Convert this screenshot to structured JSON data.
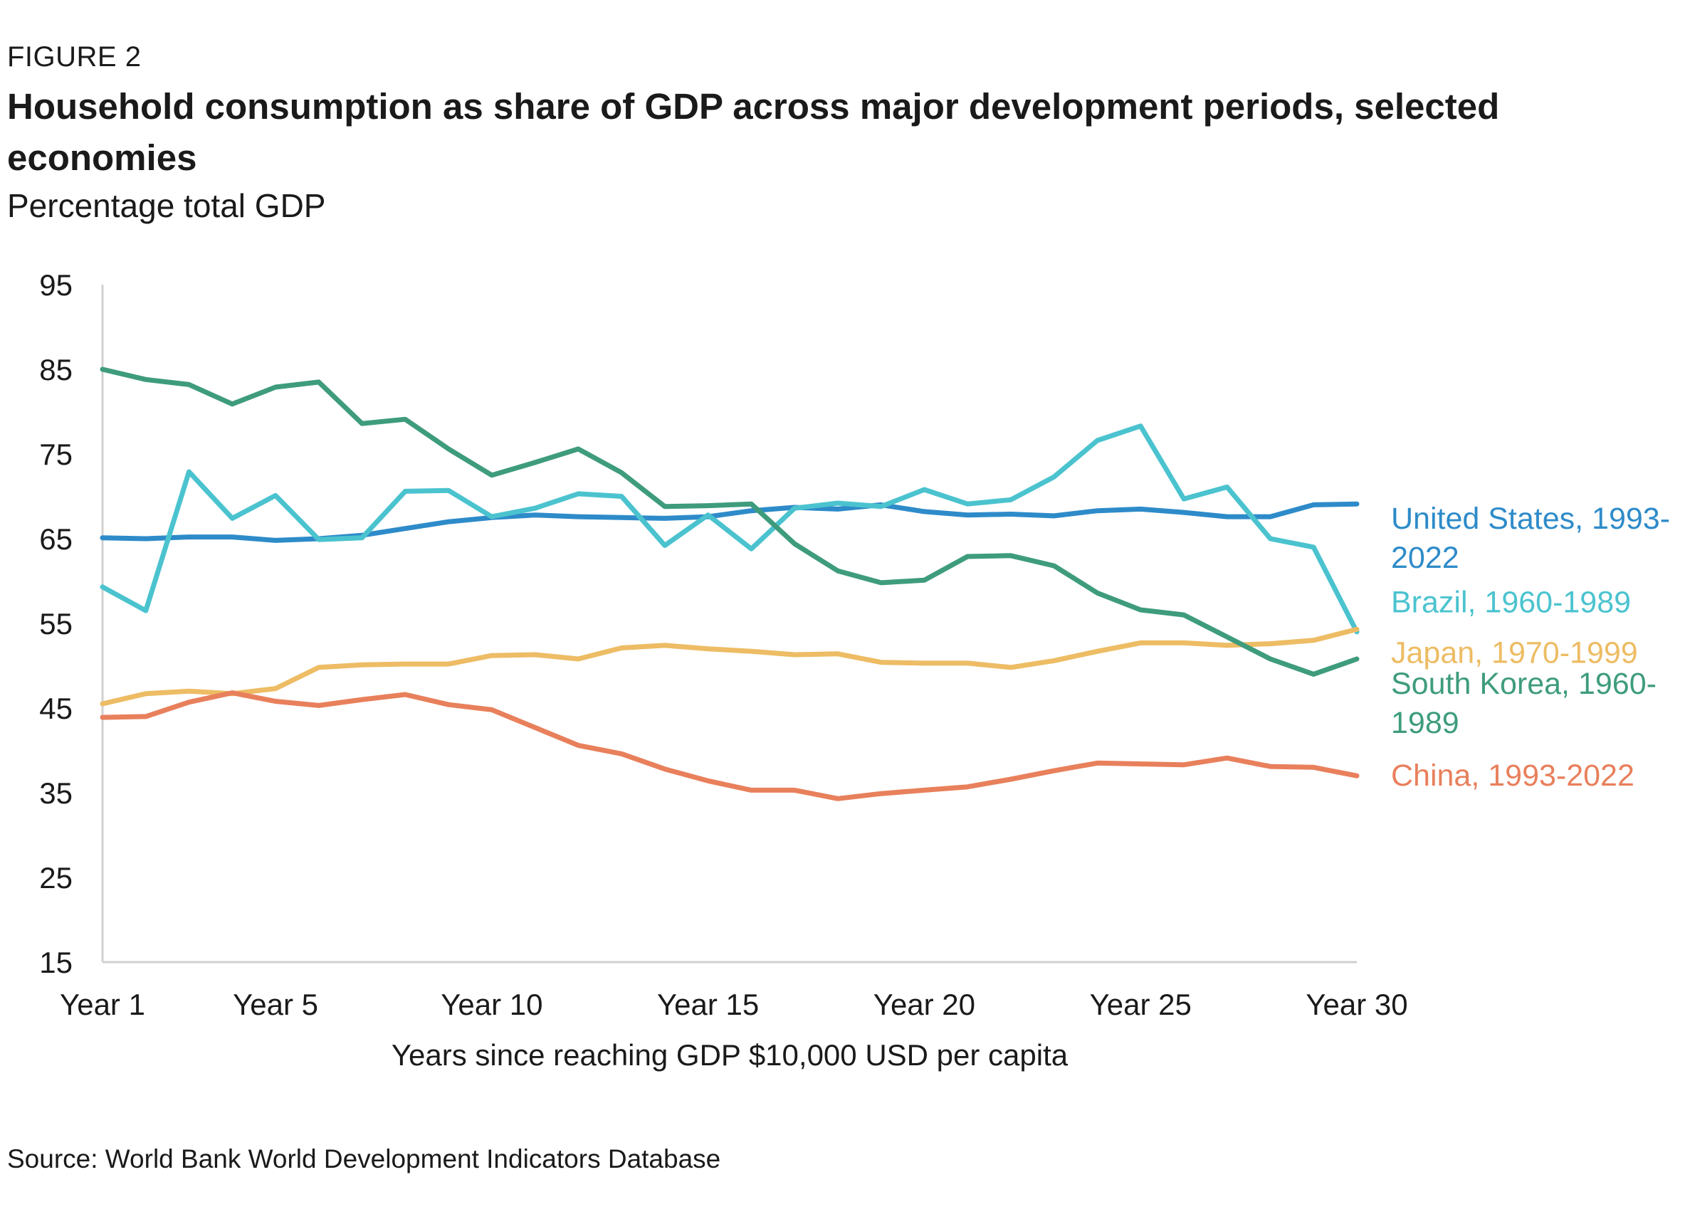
{
  "figure_label": "FIGURE 2",
  "source": "Source: World Bank World Development Indicators Database",
  "chart_data": {
    "type": "line",
    "title": "Household consumption as share of GDP across major development periods, selected economies",
    "subtitle": "Percentage total GDP",
    "xlabel": "Years since reaching GDP $10,000 USD per capita",
    "ylabel": "",
    "x": [
      1,
      2,
      3,
      4,
      5,
      6,
      7,
      8,
      9,
      10,
      11,
      12,
      13,
      14,
      15,
      16,
      17,
      18,
      19,
      20,
      21,
      22,
      23,
      24,
      25,
      26,
      27,
      28,
      29,
      30
    ],
    "x_tick_labels": [
      {
        "x": 1,
        "label": "Year 1"
      },
      {
        "x": 5,
        "label": "Year 5"
      },
      {
        "x": 10,
        "label": "Year 10"
      },
      {
        "x": 15,
        "label": "Year 15"
      },
      {
        "x": 20,
        "label": "Year 20"
      },
      {
        "x": 25,
        "label": "Year 25"
      },
      {
        "x": 30,
        "label": "Year 30"
      }
    ],
    "y_ticks": [
      15,
      25,
      35,
      45,
      55,
      65,
      75,
      85,
      95
    ],
    "ylim": [
      15,
      95
    ],
    "grid": false,
    "legend": "right, inline labels",
    "series": [
      {
        "name": "United States, 1993-2022",
        "label_lines": [
          "United States, 1993-",
          "2022"
        ],
        "color": "#2E8BC9",
        "values": [
          65.1,
          65.0,
          65.2,
          65.2,
          64.8,
          65.0,
          65.4,
          66.2,
          67.0,
          67.5,
          67.8,
          67.6,
          67.5,
          67.4,
          67.6,
          68.3,
          68.7,
          68.5,
          69.0,
          68.2,
          67.8,
          67.9,
          67.7,
          68.3,
          68.5,
          68.1,
          67.6,
          67.6,
          69.0,
          69.1
        ],
        "label_y": 65
      },
      {
        "name": "Brazil, 1960-1989",
        "label_lines": [
          "Brazil, 1960-1989"
        ],
        "color": "#4BC3CF",
        "values": [
          59.3,
          56.5,
          72.9,
          67.4,
          70.1,
          64.9,
          65.1,
          70.6,
          70.7,
          67.6,
          68.6,
          70.3,
          70.0,
          64.2,
          67.8,
          63.8,
          68.6,
          69.2,
          68.8,
          70.8,
          69.1,
          69.6,
          72.3,
          76.6,
          78.3,
          69.7,
          71.1,
          65.0,
          64.0,
          54.0
        ],
        "label_y": 57.5
      },
      {
        "name": "Japan, 1970-1999",
        "label_lines": [
          "Japan, 1970-1999"
        ],
        "color": "#EDBC64",
        "values": [
          45.5,
          46.7,
          47.0,
          46.7,
          47.3,
          49.8,
          50.1,
          50.2,
          50.2,
          51.2,
          51.3,
          50.8,
          52.1,
          52.4,
          52.0,
          51.7,
          51.3,
          51.4,
          50.4,
          50.3,
          50.3,
          49.8,
          50.6,
          51.7,
          52.7,
          52.7,
          52.4,
          52.6,
          53.0,
          54.3
        ],
        "label_y": 51.5
      },
      {
        "name": "South Korea, 1960-1989",
        "label_lines": [
          "South Korea, 1960-",
          "1989"
        ],
        "color": "#3E9C7C",
        "values": [
          85.0,
          83.8,
          83.2,
          80.9,
          82.9,
          83.5,
          78.6,
          79.1,
          75.6,
          72.5,
          74.0,
          75.6,
          72.8,
          68.8,
          68.9,
          69.1,
          64.4,
          61.2,
          59.8,
          60.1,
          62.9,
          63.0,
          61.8,
          58.6,
          56.6,
          56.0,
          53.4,
          50.8,
          49.0,
          50.8
        ],
        "label_y": 45.5
      },
      {
        "name": "China, 1993-2022",
        "label_lines": [
          "China, 1993-2022"
        ],
        "color": "#E8805C",
        "values": [
          43.9,
          44.0,
          45.7,
          46.8,
          45.8,
          45.3,
          46.0,
          46.6,
          45.4,
          44.8,
          42.7,
          40.6,
          39.6,
          37.8,
          36.4,
          35.3,
          35.3,
          34.3,
          34.9,
          35.3,
          35.7,
          36.6,
          37.6,
          38.5,
          38.4,
          38.3,
          39.1,
          38.1,
          38.0,
          37.0
        ],
        "label_y": 37
      }
    ]
  }
}
